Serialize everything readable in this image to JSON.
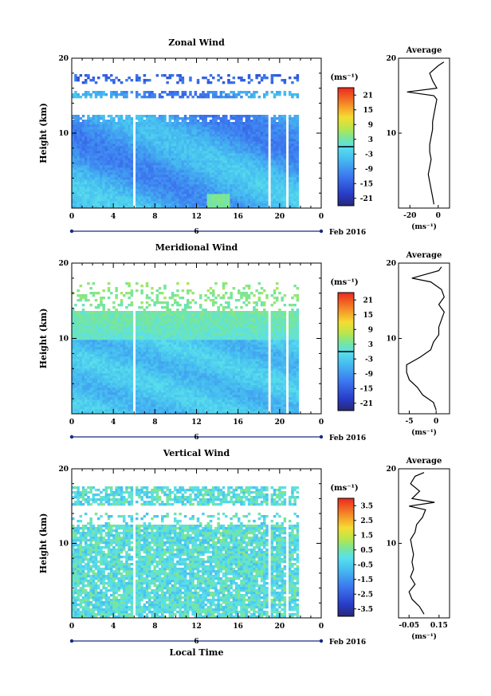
{
  "chart_data": [
    {
      "type": "heatmap",
      "title": "Zonal Wind",
      "ylabel": "Height (km)",
      "ylim": [
        0,
        20
      ],
      "yticks": [
        "10",
        "20"
      ],
      "xticks": [
        "0",
        "4",
        "8",
        "12",
        "16",
        "20",
        "0"
      ],
      "date_label": "6",
      "month_label": "Feb 2016",
      "colorbar_unit": "(ms⁻¹)",
      "colorbar_ticks": [
        "21",
        "15",
        "9",
        "3",
        "-3",
        "-9",
        "-15",
        "-21"
      ],
      "colorbar_range": [
        -24,
        24
      ],
      "zero_contour": true,
      "average_title": "Average",
      "average_xticks": [
        "-20",
        "0"
      ],
      "average_xlabel": "(ms⁻¹)",
      "average_yticks": [
        "10",
        "20"
      ],
      "average_xlim": [
        -28,
        8
      ],
      "average_profile": [
        [
          -3,
          0.5
        ],
        [
          -4,
          1.5
        ],
        [
          -5,
          2.5
        ],
        [
          -6,
          3.5
        ],
        [
          -7,
          4.5
        ],
        [
          -6,
          5.5
        ],
        [
          -5,
          6.5
        ],
        [
          -6,
          7.5
        ],
        [
          -6,
          8.5
        ],
        [
          -5,
          9.5
        ],
        [
          -4,
          10.5
        ],
        [
          -4,
          11.5
        ],
        [
          -3,
          12.5
        ],
        [
          -2,
          13.5
        ],
        [
          -1,
          14.5
        ],
        [
          -3,
          15.0
        ],
        [
          -22,
          15.5
        ],
        [
          -1,
          16.0
        ],
        [
          -4,
          17.0
        ],
        [
          -6,
          18.0
        ],
        [
          0,
          19.0
        ],
        [
          4,
          19.5
        ]
      ],
      "gaps_local_time": [
        [
          5.8,
          6.0
        ],
        [
          18.8,
          19.0
        ],
        [
          20.6,
          20.8
        ]
      ],
      "data_end_local_time": 21.6
    },
    {
      "type": "heatmap",
      "title": "Meridional Wind",
      "ylabel": "Height (km)",
      "ylim": [
        0,
        20
      ],
      "yticks": [
        "10",
        "20"
      ],
      "xticks": [
        "0",
        "4",
        "8",
        "12",
        "16",
        "20",
        "0"
      ],
      "date_label": "6",
      "month_label": "Feb 2016",
      "colorbar_unit": "(ms⁻¹)",
      "colorbar_ticks": [
        "21",
        "15",
        "9",
        "3",
        "-3",
        "-9",
        "-15",
        "-21"
      ],
      "colorbar_range": [
        -24,
        24
      ],
      "zero_contour": true,
      "average_title": "Average",
      "average_xticks": [
        "-5",
        "0"
      ],
      "average_xlabel": "(ms⁻¹)",
      "average_yticks": [
        "10",
        "20"
      ],
      "average_xlim": [
        -7,
        2.5
      ],
      "average_profile": [
        [
          0.0,
          0.5
        ],
        [
          -0.5,
          1.5
        ],
        [
          -2.5,
          2.5
        ],
        [
          -3.5,
          3.5
        ],
        [
          -5.0,
          4.5
        ],
        [
          -5.5,
          5.5
        ],
        [
          -5.5,
          6.5
        ],
        [
          -3.0,
          7.5
        ],
        [
          -1.0,
          8.5
        ],
        [
          -0.5,
          9.5
        ],
        [
          0.5,
          10.5
        ],
        [
          0.5,
          11.5
        ],
        [
          1.0,
          12.5
        ],
        [
          1.5,
          13.5
        ],
        [
          0.5,
          14.5
        ],
        [
          1.5,
          15.5
        ],
        [
          1.0,
          16.5
        ],
        [
          -1.0,
          17.5
        ],
        [
          -4.5,
          18.0
        ],
        [
          0.5,
          19.0
        ],
        [
          1.0,
          19.5
        ]
      ],
      "gaps_local_time": [
        [
          5.8,
          6.0
        ],
        [
          18.8,
          19.0
        ],
        [
          20.6,
          20.8
        ]
      ],
      "data_end_local_time": 21.6
    },
    {
      "type": "heatmap",
      "title": "Vertical Wind",
      "ylabel": "Height (km)",
      "xlabel": "Local Time",
      "ylim": [
        0,
        20
      ],
      "yticks": [
        "10",
        "20"
      ],
      "xticks": [
        "0",
        "4",
        "8",
        "12",
        "16",
        "20",
        "0"
      ],
      "date_label": "6",
      "month_label": "Feb 2016",
      "colorbar_unit": "(ms⁻¹)",
      "colorbar_ticks": [
        "3.5",
        "2.5",
        "1.5",
        "0.5",
        "-0.5",
        "-1.5",
        "-2.5",
        "-3.5"
      ],
      "colorbar_range": [
        -4,
        4
      ],
      "zero_contour": false,
      "average_title": "Average",
      "average_xticks": [
        "-0.05",
        "0.15"
      ],
      "average_xlabel": "(ms⁻¹)",
      "average_yticks": [
        "10",
        "20"
      ],
      "average_xlim": [
        -0.12,
        0.22
      ],
      "average_profile": [
        [
          0.05,
          0.5
        ],
        [
          0.02,
          1.5
        ],
        [
          -0.03,
          2.5
        ],
        [
          -0.05,
          3.5
        ],
        [
          -0.01,
          4.5
        ],
        [
          -0.04,
          5.5
        ],
        [
          -0.02,
          6.5
        ],
        [
          -0.03,
          7.5
        ],
        [
          -0.02,
          8.5
        ],
        [
          -0.03,
          9.5
        ],
        [
          -0.04,
          10.5
        ],
        [
          -0.01,
          11.5
        ],
        [
          0.0,
          12.5
        ],
        [
          0.04,
          13.5
        ],
        [
          0.06,
          14.5
        ],
        [
          -0.05,
          15.0
        ],
        [
          0.12,
          15.5
        ],
        [
          -0.03,
          16.0
        ],
        [
          0.02,
          17.0
        ],
        [
          -0.04,
          18.0
        ],
        [
          -0.01,
          19.0
        ],
        [
          0.05,
          19.5
        ]
      ],
      "gaps_local_time": [
        [
          5.8,
          6.0
        ],
        [
          18.8,
          19.0
        ],
        [
          20.6,
          20.8
        ]
      ],
      "data_end_local_time": 21.6
    }
  ]
}
